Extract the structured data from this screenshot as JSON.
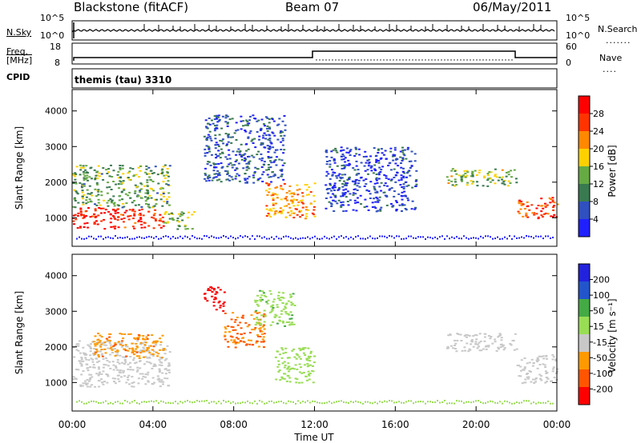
{
  "header": {
    "station": "Blackstone (fitACF)",
    "beam": "Beam 07",
    "date": "06/May/2011"
  },
  "top_panels": {
    "nsky_label": "N.Sky",
    "nsky_ticks": [
      "10^5",
      "10^0"
    ],
    "nsearch_label": "N.Search",
    "nsearch_ticks": [
      "10^5",
      "10^0"
    ],
    "freq_label": "Freq.",
    "freq_unit": "[MHz]",
    "freq_ticks": [
      "18",
      "8"
    ],
    "nave_label": "Nave",
    "nave_ticks": [
      "60",
      "0"
    ],
    "cpid_label": "CPID",
    "cpid_value": "themis (tau) 3310"
  },
  "colors": {
    "power_scale": [
      "#2020ff",
      "#3050c0",
      "#3a7a50",
      "#66aa44",
      "#ffd000",
      "#ff8800",
      "#ff3300",
      "#ff0000"
    ],
    "velocity_scale": [
      "#ff0000",
      "#ff5500",
      "#ff9900",
      "#c8c8c8",
      "#99dd55",
      "#44aa44",
      "#2255cc",
      "#2222dd"
    ],
    "ground_scatter": "#c0c0b8"
  },
  "chart_data": [
    {
      "type": "heatmap",
      "panel": "power",
      "ylabel": "Slant Range [km]",
      "yticks": [
        "1000",
        "2000",
        "3000",
        "4000"
      ],
      "ylim": [
        200,
        4600
      ],
      "xlim": [
        0,
        24
      ],
      "colorbar_label": "Power [dB]",
      "colorbar_ticks": [
        "28",
        "24",
        "20",
        "16",
        "12",
        "8",
        "4"
      ],
      "colorbar_range": [
        0,
        30
      ],
      "regions": [
        {
          "t": [
            0.0,
            4.5
          ],
          "range": [
            700,
            1300
          ],
          "value": 27
        },
        {
          "t": [
            0.0,
            4.8
          ],
          "range": [
            1300,
            2500
          ],
          "value": 12
        },
        {
          "t": [
            4.5,
            6.0
          ],
          "range": [
            700,
            1200
          ],
          "value": 14
        },
        {
          "t": [
            6.5,
            10.5
          ],
          "range": [
            2000,
            3900
          ],
          "value": 6
        },
        {
          "t": [
            9.5,
            12.0
          ],
          "range": [
            1000,
            2000
          ],
          "value": 20
        },
        {
          "t": [
            12.5,
            17.0
          ],
          "range": [
            1200,
            3000
          ],
          "value": 4
        },
        {
          "t": [
            18.5,
            22.0
          ],
          "range": [
            1900,
            2400
          ],
          "value": 14
        },
        {
          "t": [
            22.0,
            24.0
          ],
          "range": [
            1000,
            1600
          ],
          "value": 24
        }
      ]
    },
    {
      "type": "heatmap",
      "panel": "velocity",
      "ylabel": "Slant Range [km]",
      "yticks": [
        "1000",
        "2000",
        "3000",
        "4000"
      ],
      "ylim": [
        200,
        4600
      ],
      "xlim": [
        0,
        24
      ],
      "xticks": [
        "00:00",
        "04:00",
        "08:00",
        "12:00",
        "16:00",
        "20:00",
        "00:00"
      ],
      "xlabel": "Time UT",
      "colorbar_label": "Velocity [m s⁻¹]",
      "colorbar_ticks": [
        "200",
        "100",
        "50",
        "15",
        "-15",
        "-50",
        "-100",
        "-200"
      ],
      "colorbar_range": [
        -250,
        250
      ],
      "regions": [
        {
          "t": [
            0.0,
            4.8
          ],
          "range": [
            900,
            2200
          ],
          "value": 0
        },
        {
          "t": [
            1.0,
            4.5
          ],
          "range": [
            1700,
            2400
          ],
          "value": -60
        },
        {
          "t": [
            6.5,
            7.5
          ],
          "range": [
            3000,
            3700
          ],
          "value": -220
        },
        {
          "t": [
            7.5,
            9.5
          ],
          "range": [
            2000,
            3000
          ],
          "value": -80
        },
        {
          "t": [
            9.0,
            11.0
          ],
          "range": [
            2600,
            3600
          ],
          "value": 60
        },
        {
          "t": [
            10.0,
            12.0
          ],
          "range": [
            1000,
            2000
          ],
          "value": 40
        },
        {
          "t": [
            18.5,
            22.0
          ],
          "range": [
            1900,
            2400
          ],
          "value": 0
        },
        {
          "t": [
            22.0,
            24.0
          ],
          "range": [
            1000,
            1800
          ],
          "value": 0
        }
      ]
    }
  ]
}
